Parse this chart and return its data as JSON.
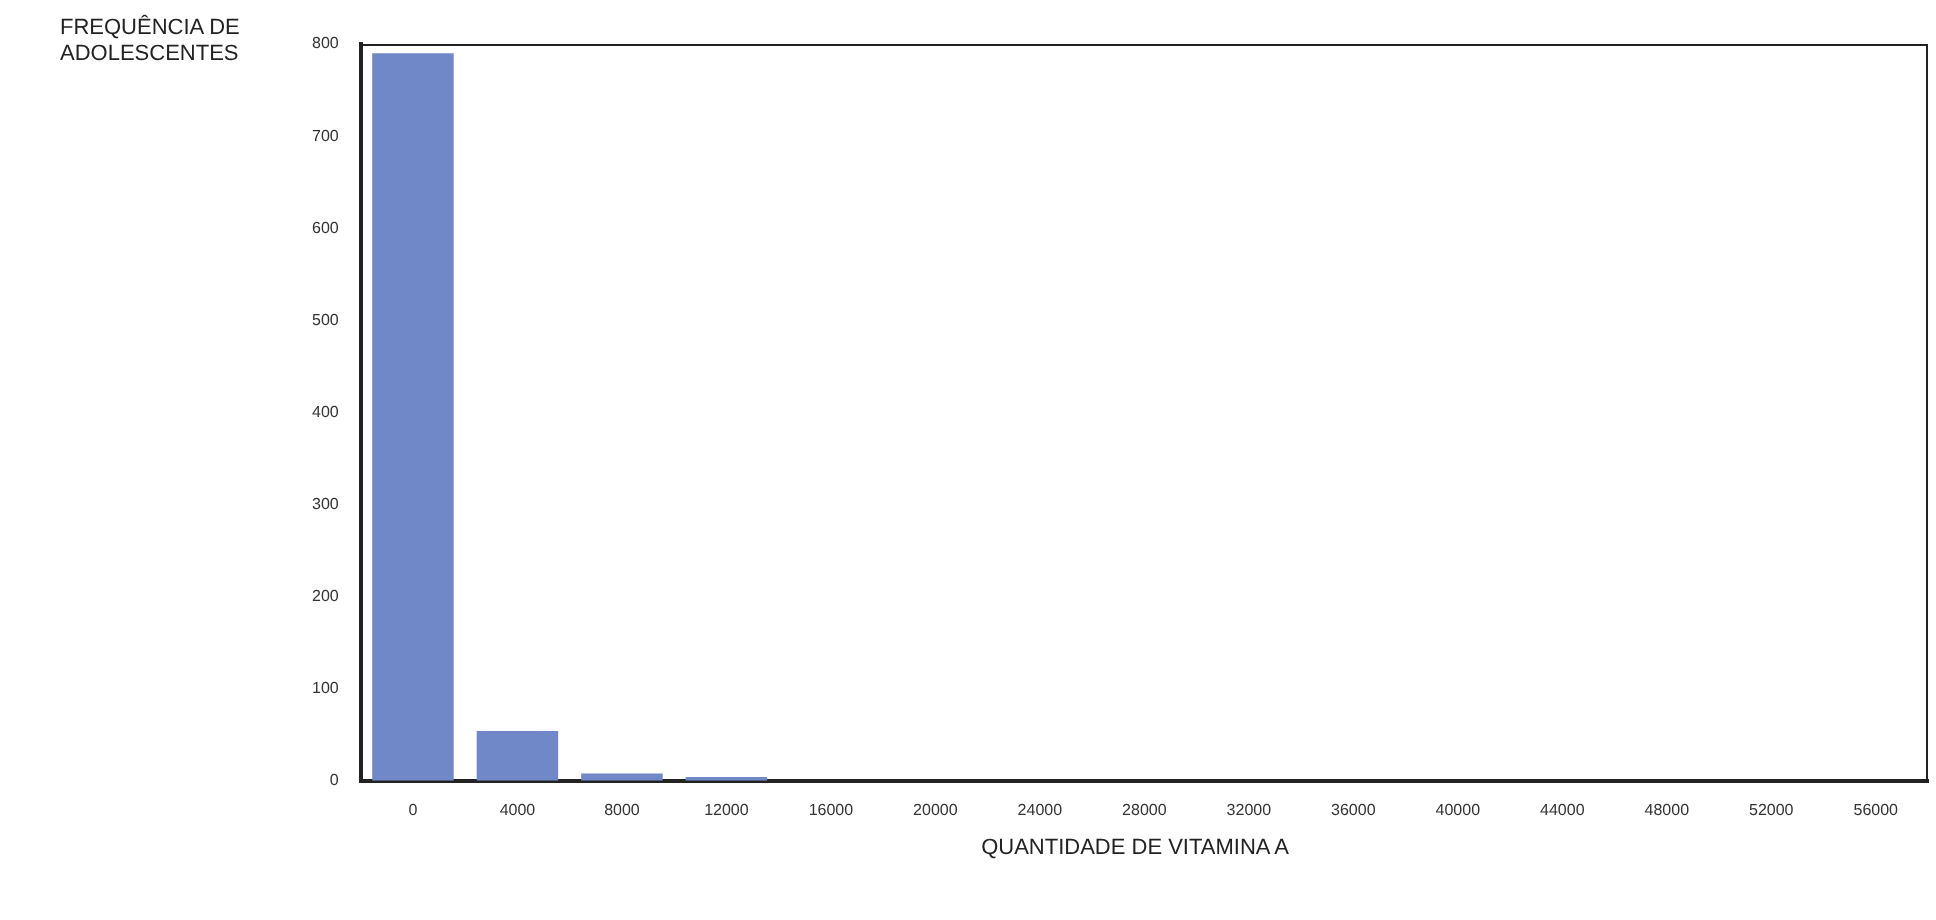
{
  "chart_data": {
    "type": "bar",
    "xlabel": "QUANTIDADE DE VITAMINA A",
    "ylabel": "FREQUÊNCIA DE ADOLESCENTES",
    "categories": [
      "0",
      "4000",
      "8000",
      "12000",
      "16000",
      "20000",
      "24000",
      "28000",
      "32000",
      "36000",
      "40000",
      "44000",
      "48000",
      "52000",
      "56000"
    ],
    "values": [
      790,
      54,
      8,
      4,
      0,
      0,
      0,
      0,
      0,
      0,
      0,
      0,
      0,
      0,
      0
    ],
    "color": "#7088c8",
    "ylim": [
      0,
      800
    ],
    "yticks": [
      0,
      100,
      200,
      300,
      400,
      500,
      600,
      700,
      800
    ],
    "grid": false,
    "legend": false
  }
}
